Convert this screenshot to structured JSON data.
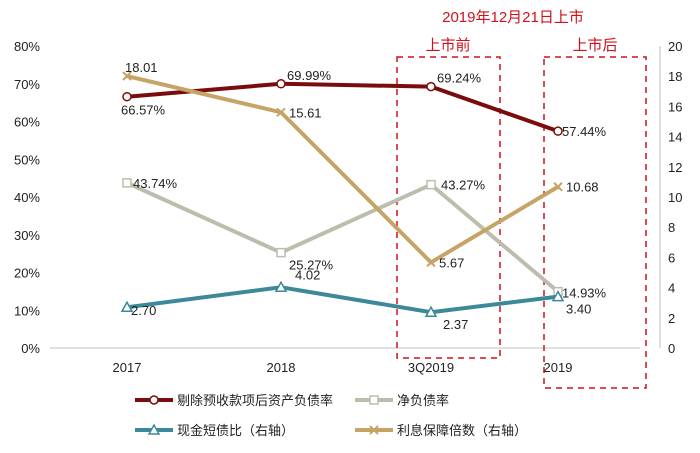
{
  "chart_data": {
    "type": "line",
    "categories": [
      "2017",
      "2018",
      "3Q2019",
      "2019"
    ],
    "left_axis": {
      "ticks": [
        "0%",
        "10%",
        "20%",
        "30%",
        "40%",
        "50%",
        "60%",
        "70%",
        "80%"
      ],
      "ylim": [
        0,
        80
      ]
    },
    "right_axis": {
      "ticks": [
        "0",
        "2",
        "4",
        "6",
        "8",
        "10",
        "12",
        "14",
        "16",
        "18",
        "20"
      ],
      "ylim": [
        0,
        20
      ]
    },
    "grid": false,
    "legend_placement": "bottom",
    "series": [
      {
        "name": "剔除预收款项后资产负债率",
        "axis": "left",
        "values": [
          66.57,
          69.99,
          69.24,
          57.44
        ],
        "labels": [
          "66.57%",
          "69.99%",
          "69.24%",
          "57.44%"
        ],
        "color": "#7B0C0C",
        "marker": "circle"
      },
      {
        "name": "净负债率",
        "axis": "left",
        "values": [
          43.74,
          25.27,
          43.27,
          14.93
        ],
        "labels": [
          "43.74%",
          "25.27%",
          "43.27%",
          "14.93%"
        ],
        "color": "#BDBDAE",
        "marker": "square"
      },
      {
        "name": "现金短债比（右轴）",
        "axis": "right",
        "values": [
          2.7,
          4.02,
          2.37,
          3.4
        ],
        "labels": [
          "2.70",
          "4.02",
          "2.37",
          "3.40"
        ],
        "color": "#3B8999",
        "marker": "triangle"
      },
      {
        "name": "利息保障倍数（右轴）",
        "axis": "right",
        "values": [
          18.01,
          15.61,
          5.67,
          10.68
        ],
        "labels": [
          "18.01",
          "15.61",
          "5.67",
          "10.68"
        ],
        "color": "#C6A466",
        "marker": "x"
      }
    ],
    "annotations": {
      "title": "2019年12月21日上市",
      "before": "上市前",
      "after": "上市后",
      "color": "#D0111B"
    }
  }
}
